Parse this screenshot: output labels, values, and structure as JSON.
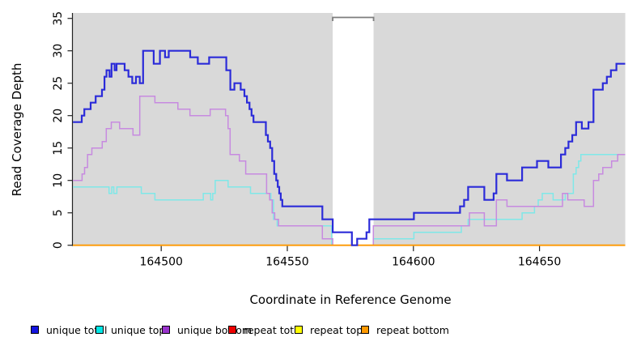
{
  "axes": {
    "y_title": "Read Coverage Depth",
    "x_title": "Coordinate in Reference Genome",
    "y_ticks": [
      0,
      5,
      10,
      15,
      20,
      25,
      30,
      35
    ],
    "x_ticks": [
      164500,
      164550,
      164600,
      164650
    ]
  },
  "colors": {
    "plot_background": "#d9d9d9",
    "masked_band": "#ffffff",
    "masked_cap": "#7d7d7d",
    "axis": "#222222",
    "tick_text": "#000000"
  },
  "chart_data": {
    "type": "line",
    "subtype": "step",
    "title": "",
    "xlabel": "Coordinate in Reference Genome",
    "ylabel": "Read Coverage Depth",
    "xlim": [
      164465,
      164684
    ],
    "ylim": [
      0,
      35
    ],
    "x_ticks": [
      164500,
      164550,
      164600,
      164650
    ],
    "y_ticks": [
      0,
      5,
      10,
      15,
      20,
      25,
      30,
      35
    ],
    "grid": false,
    "legend_position": "bottom",
    "masked_region": {
      "start": 164568,
      "end": 164584.2,
      "cap_marker_depth": 35
    },
    "series": [
      {
        "name": "unique total",
        "color": "#2b2bd9",
        "legend_color": "#1414e0",
        "points": [
          [
            164465,
            19
          ],
          [
            164468.5,
            20
          ],
          [
            164469.5,
            21
          ],
          [
            164472,
            22
          ],
          [
            164474,
            23
          ],
          [
            164476.5,
            24
          ],
          [
            164477.5,
            26
          ],
          [
            164478.3,
            27
          ],
          [
            164479.5,
            26
          ],
          [
            164480.3,
            28
          ],
          [
            164481.5,
            27
          ],
          [
            164482.3,
            28
          ],
          [
            164485.5,
            27
          ],
          [
            164487,
            26
          ],
          [
            164488.5,
            25
          ],
          [
            164490,
            26
          ],
          [
            164491.5,
            25
          ],
          [
            164492.8,
            30
          ],
          [
            164497,
            28
          ],
          [
            164499.5,
            30
          ],
          [
            164501.5,
            29
          ],
          [
            164503,
            30
          ],
          [
            164511.5,
            29
          ],
          [
            164514.5,
            28
          ],
          [
            164519,
            29
          ],
          [
            164525.8,
            27
          ],
          [
            164527.4,
            24
          ],
          [
            164529,
            25
          ],
          [
            164531.5,
            24
          ],
          [
            164533,
            23
          ],
          [
            164534,
            22
          ],
          [
            164535,
            21
          ],
          [
            164535.8,
            20
          ],
          [
            164536.6,
            19
          ],
          [
            164541.5,
            17
          ],
          [
            164542.3,
            16
          ],
          [
            164543.2,
            15
          ],
          [
            164544,
            13
          ],
          [
            164544.8,
            11
          ],
          [
            164545.6,
            10
          ],
          [
            164546.2,
            9
          ],
          [
            164546.8,
            8
          ],
          [
            164547.4,
            7
          ],
          [
            164548,
            6
          ],
          [
            164563.9,
            4
          ],
          [
            164568,
            2
          ],
          [
            164575.6,
            0
          ],
          [
            164577.7,
            1
          ],
          [
            164581.4,
            2
          ],
          [
            164582.5,
            4
          ],
          [
            164600.2,
            5
          ],
          [
            164618.5,
            6
          ],
          [
            164620.1,
            7
          ],
          [
            164621.7,
            9
          ],
          [
            164628.1,
            7
          ],
          [
            164631.8,
            8
          ],
          [
            164632.9,
            11
          ],
          [
            164637.1,
            10
          ],
          [
            164643.1,
            12
          ],
          [
            164649,
            13
          ],
          [
            164653.5,
            12
          ],
          [
            164658.5,
            14
          ],
          [
            164660.2,
            15
          ],
          [
            164661.5,
            16
          ],
          [
            164663,
            17
          ],
          [
            164664.5,
            19
          ],
          [
            164666.8,
            18
          ],
          [
            164669.4,
            19
          ],
          [
            164671.4,
            24
          ],
          [
            164675.1,
            25
          ],
          [
            164676.7,
            26
          ],
          [
            164678.3,
            27
          ],
          [
            164680.5,
            28
          ]
        ]
      },
      {
        "name": "unique top",
        "color": "#7fe8e8",
        "legend_color": "#00e6e6",
        "points": [
          [
            164465,
            9
          ],
          [
            164479.3,
            8
          ],
          [
            164480.4,
            9
          ],
          [
            164481.2,
            8
          ],
          [
            164482.4,
            9
          ],
          [
            164492.1,
            8
          ],
          [
            164497.5,
            7
          ],
          [
            164516.7,
            8
          ],
          [
            164519.6,
            7
          ],
          [
            164520.4,
            8
          ],
          [
            164521.4,
            10
          ],
          [
            164526.5,
            9
          ],
          [
            164535.4,
            8
          ],
          [
            164543.5,
            7
          ],
          [
            164544.5,
            4
          ],
          [
            164546,
            3
          ],
          [
            164567.6,
            0
          ],
          [
            164584.1,
            1
          ],
          [
            164600.2,
            2
          ],
          [
            164619,
            3
          ],
          [
            164621.7,
            4
          ],
          [
            164643.1,
            5
          ],
          [
            164648,
            6
          ],
          [
            164649.5,
            7
          ],
          [
            164651.1,
            8
          ],
          [
            164655.4,
            7
          ],
          [
            164660.2,
            8
          ],
          [
            164663.4,
            11
          ],
          [
            164664.5,
            12
          ],
          [
            164665.5,
            13
          ],
          [
            164666.4,
            14
          ]
        ]
      },
      {
        "name": "unique bottom",
        "color": "#c78ae0",
        "legend_color": "#9933cc",
        "points": [
          [
            164465,
            10
          ],
          [
            164468.6,
            11
          ],
          [
            164469.6,
            12
          ],
          [
            164470.8,
            14
          ],
          [
            164472.5,
            15
          ],
          [
            164476.6,
            16
          ],
          [
            164478.2,
            18
          ],
          [
            164480.2,
            19
          ],
          [
            164483.5,
            18
          ],
          [
            164488.8,
            17
          ],
          [
            164491.5,
            23
          ],
          [
            164497.5,
            22
          ],
          [
            164506.6,
            21
          ],
          [
            164511.4,
            20
          ],
          [
            164519.4,
            21
          ],
          [
            164525.5,
            20
          ],
          [
            164526.5,
            18
          ],
          [
            164527.3,
            14
          ],
          [
            164531,
            13
          ],
          [
            164533.5,
            11
          ],
          [
            164541.8,
            8
          ],
          [
            164543,
            7
          ],
          [
            164544,
            5
          ],
          [
            164545,
            4
          ],
          [
            164546.5,
            3
          ],
          [
            164563.9,
            1
          ],
          [
            164568,
            0
          ],
          [
            164584.1,
            3
          ],
          [
            164622.2,
            5
          ],
          [
            164628.1,
            3
          ],
          [
            164632.9,
            7
          ],
          [
            164637.1,
            6
          ],
          [
            164659.1,
            8
          ],
          [
            164661.2,
            7
          ],
          [
            164667.7,
            6
          ],
          [
            164671.4,
            10
          ],
          [
            164673.5,
            11
          ],
          [
            164675.1,
            12
          ],
          [
            164678.6,
            13
          ],
          [
            164681,
            14
          ]
        ]
      },
      {
        "name": "repeat total",
        "color": "#dd0000",
        "legend_color": "#ee0000",
        "points": [
          [
            164465,
            0
          ]
        ]
      },
      {
        "name": "repeat top",
        "color": "#ffee00",
        "legend_color": "#ffff00",
        "points": [
          [
            164465,
            0
          ]
        ]
      },
      {
        "name": "repeat bottom",
        "color": "#ff9900",
        "legend_color": "#ff9900",
        "points": [
          [
            164465,
            0
          ]
        ]
      }
    ]
  },
  "legend": {
    "items": [
      {
        "label": "unique total",
        "color": "#1414e0"
      },
      {
        "label": "unique top",
        "color": "#00e6e6"
      },
      {
        "label": "unique bottom",
        "color": "#9933cc"
      },
      {
        "label": "repeat total",
        "color": "#ee0000"
      },
      {
        "label": "repeat top",
        "color": "#ffff00"
      },
      {
        "label": "repeat bottom",
        "color": "#ff9900"
      }
    ]
  }
}
